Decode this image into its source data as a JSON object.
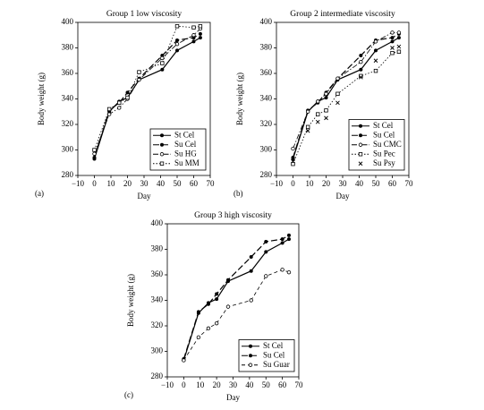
{
  "chart_data": [
    {
      "type": "line",
      "panel_label": "(a)",
      "title": "Group 1 low viscosity",
      "xlabel": "Day",
      "ylabel": "Body weight (g)",
      "x": [
        0,
        9,
        15,
        20,
        27,
        41,
        50,
        60,
        64
      ],
      "series": [
        {
          "name": "St Cel",
          "color": "#000000",
          "linestyle": "solid",
          "marker": "filled-circle",
          "values": [
            293,
            330,
            338,
            341,
            355,
            363,
            378,
            385,
            388
          ]
        },
        {
          "name": "Su Cel",
          "color": "#000000",
          "linestyle": "dashed",
          "marker": "filled-circle",
          "values": [
            294,
            331,
            337,
            345,
            356,
            374,
            386,
            388,
            391
          ]
        },
        {
          "name": "Su HG",
          "color": "#000000",
          "linestyle": "dashdot",
          "marker": "open-circle",
          "values": [
            297,
            328,
            333,
            340,
            355,
            372,
            383,
            390,
            395
          ]
        },
        {
          "name": "Su MM",
          "color": "#000000",
          "linestyle": "dotted",
          "marker": "open-square",
          "values": [
            300,
            332,
            337,
            341,
            361,
            368,
            397,
            396,
            397
          ]
        }
      ],
      "xlim": [
        -10,
        70
      ],
      "xticks": [
        {
          "value": -10,
          "label": "−10"
        },
        0,
        10,
        20,
        30,
        40,
        50,
        60,
        70
      ],
      "ylim": [
        280,
        400
      ],
      "yticks": [
        280,
        300,
        320,
        340,
        360,
        380,
        400
      ],
      "legend": "lower right"
    },
    {
      "type": "line",
      "panel_label": "(b)",
      "title": "Group 2 intermediate viscosity",
      "xlabel": "Day",
      "ylabel": "Body weight (g)",
      "x": [
        0,
        9,
        15,
        20,
        27,
        41,
        50,
        60,
        64
      ],
      "series": [
        {
          "name": "St Cel",
          "color": "#000000",
          "linestyle": "solid",
          "marker": "filled-circle",
          "values": [
            293,
            330,
            338,
            341,
            355,
            363,
            378,
            385,
            388
          ]
        },
        {
          "name": "Su Cel",
          "color": "#000000",
          "linestyle": "dashed",
          "marker": "filled-circle",
          "values": [
            294,
            331,
            337,
            345,
            356,
            374,
            386,
            388,
            391
          ]
        },
        {
          "name": "Su CMC",
          "color": "#000000",
          "linestyle": "dashdot",
          "marker": "open-circle",
          "values": [
            301,
            330,
            338,
            344,
            356,
            369,
            385,
            392,
            392
          ]
        },
        {
          "name": "Su Pec",
          "color": "#000000",
          "linestyle": "dotted",
          "marker": "open-square",
          "values": [
            289,
            318,
            328,
            331,
            344,
            358,
            362,
            376,
            377
          ]
        },
        {
          "name": "Su Psy",
          "color": "#000000",
          "linestyle": "none",
          "marker": "cross",
          "values": [
            291,
            315,
            322,
            325,
            337,
            357,
            370,
            380,
            381
          ]
        }
      ],
      "xlim": [
        -10,
        70
      ],
      "xticks": [
        {
          "value": -10,
          "label": "−10"
        },
        0,
        10,
        20,
        30,
        40,
        50,
        60,
        70
      ],
      "ylim": [
        280,
        400
      ],
      "yticks": [
        280,
        300,
        320,
        340,
        360,
        380,
        400
      ],
      "legend": "lower right"
    },
    {
      "type": "line",
      "panel_label": "(c)",
      "title": "Group 3 high viscosity",
      "xlabel": "Day",
      "ylabel": "Body weight (g)",
      "x": [
        0,
        9,
        15,
        20,
        27,
        41,
        50,
        60,
        64
      ],
      "series": [
        {
          "name": "St Cel",
          "color": "#000000",
          "linestyle": "solid",
          "marker": "filled-circle",
          "values": [
            293,
            330,
            338,
            341,
            355,
            363,
            378,
            385,
            388
          ]
        },
        {
          "name": "Su Cel",
          "color": "#000000",
          "linestyle": "dashed",
          "marker": "filled-circle",
          "values": [
            294,
            331,
            337,
            345,
            356,
            374,
            386,
            388,
            391
          ]
        },
        {
          "name": "Su Guar",
          "color": "#000000",
          "linestyle": "dashed-light",
          "marker": "open-circle",
          "values": [
            293,
            311,
            318,
            322,
            335,
            340,
            359,
            364,
            362
          ]
        }
      ],
      "xlim": [
        -10,
        70
      ],
      "xticks": [
        {
          "value": -10,
          "label": "−10"
        },
        0,
        10,
        20,
        30,
        40,
        50,
        60,
        70
      ],
      "ylim": [
        280,
        400
      ],
      "yticks": [
        280,
        300,
        320,
        340,
        360,
        380,
        400
      ],
      "legend": "lower right"
    }
  ]
}
